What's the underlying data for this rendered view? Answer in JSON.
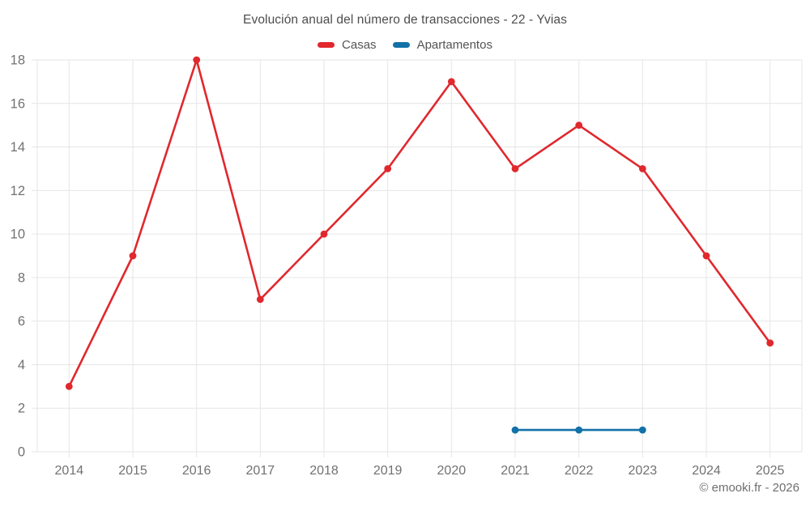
{
  "chart_data": {
    "type": "line",
    "title": "Evolución anual del número de transacciones - 22 - Yvias",
    "categories": [
      "2014",
      "2015",
      "2016",
      "2017",
      "2018",
      "2019",
      "2020",
      "2021",
      "2022",
      "2023",
      "2024",
      "2025"
    ],
    "series": [
      {
        "name": "Casas",
        "color": "#e0282d",
        "values": [
          3,
          9,
          18,
          7,
          10,
          13,
          17,
          13,
          15,
          13,
          9,
          5
        ]
      },
      {
        "name": "Apartamentos",
        "color": "#1271a8",
        "values": [
          null,
          null,
          null,
          null,
          null,
          null,
          null,
          1,
          1,
          1,
          null,
          null
        ]
      }
    ],
    "xlabel": "",
    "ylabel": "",
    "ylim": [
      0,
      18
    ],
    "ytick_step": 2,
    "grid": true,
    "legend_position": "top"
  },
  "footer": {
    "credit": "© emooki.fr - 2026"
  },
  "colors": {
    "grid": "#e6e6e6",
    "axis_text": "#717171",
    "title_text": "#4d4d4d",
    "legend_text": "#545454"
  }
}
